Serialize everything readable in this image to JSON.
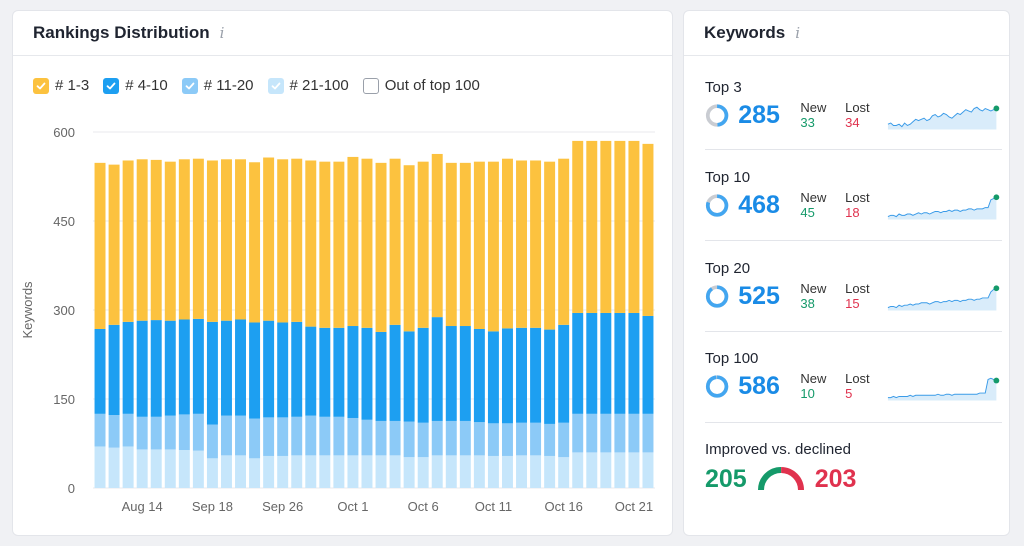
{
  "rankings": {
    "title": "Rankings Distribution",
    "info_glyph": "i",
    "legend": [
      {
        "label": "# 1-3",
        "color": "#fcc23f",
        "checked": true
      },
      {
        "label": "# 4-10",
        "color": "#1d9ff1",
        "checked": true
      },
      {
        "label": "# 11-20",
        "color": "#8ccaf7",
        "checked": true
      },
      {
        "label": "# 21-100",
        "color": "#c6e6fb",
        "checked": true
      },
      {
        "label": "Out of top 100",
        "color": "#ffffff",
        "checked": false
      }
    ]
  },
  "chart_data": {
    "type": "bar",
    "stacked": true,
    "ylabel": "Keywords",
    "xlabel": "",
    "ylim": [
      0,
      600
    ],
    "yticks": [
      0,
      150,
      300,
      450,
      600
    ],
    "grid": true,
    "x_tick_labels": [
      {
        "index": 3,
        "label": "Aug 14"
      },
      {
        "index": 8,
        "label": "Sep 18"
      },
      {
        "index": 13,
        "label": "Sep 26"
      },
      {
        "index": 18,
        "label": "Oct 1"
      },
      {
        "index": 23,
        "label": "Oct 6"
      },
      {
        "index": 28,
        "label": "Oct 11"
      },
      {
        "index": 33,
        "label": "Oct 16"
      },
      {
        "index": 38,
        "label": "Oct 21"
      }
    ],
    "series": [
      {
        "name": "# 21-100",
        "color": "#c6e6fb",
        "values": [
          70,
          68,
          70,
          65,
          65,
          65,
          64,
          63,
          50,
          55,
          55,
          50,
          54,
          54,
          55,
          55,
          55,
          55,
          55,
          55,
          55,
          55,
          52,
          52,
          55,
          55,
          55,
          55,
          54,
          54,
          55,
          55,
          54,
          52,
          60,
          60,
          60,
          60,
          60,
          60
        ]
      },
      {
        "name": "# 11-20",
        "color": "#8ccaf7",
        "values": [
          55,
          55,
          55,
          55,
          55,
          57,
          60,
          62,
          57,
          67,
          67,
          67,
          65,
          65,
          65,
          67,
          65,
          65,
          63,
          60,
          58,
          58,
          60,
          58,
          58,
          58,
          58,
          56,
          55,
          55,
          55,
          55,
          54,
          58,
          65,
          65,
          65,
          65,
          65,
          65
        ]
      },
      {
        "name": "# 4-10",
        "color": "#1d9ff1",
        "values": [
          143,
          152,
          155,
          162,
          163,
          160,
          160,
          160,
          173,
          160,
          162,
          162,
          163,
          160,
          160,
          150,
          150,
          150,
          155,
          155,
          150,
          162,
          152,
          160,
          175,
          160,
          160,
          157,
          155,
          160,
          160,
          160,
          159,
          165,
          170,
          170,
          170,
          170,
          170,
          165
        ]
      },
      {
        "name": "# 1-3",
        "color": "#fcc23f",
        "values": [
          280,
          270,
          272,
          272,
          270,
          268,
          270,
          270,
          272,
          272,
          270,
          270,
          275,
          275,
          275,
          280,
          280,
          280,
          285,
          285,
          285,
          280,
          280,
          280,
          275,
          275,
          275,
          282,
          286,
          286,
          282,
          282,
          283,
          280,
          290,
          290,
          290,
          290,
          290,
          290
        ]
      }
    ]
  },
  "keywords": {
    "title": "Keywords",
    "info_glyph": "i",
    "new_label": "New",
    "lost_label": "Lost",
    "blocks": [
      {
        "label": "Top 3",
        "value": "285",
        "new": "33",
        "lost": "34",
        "donut_fraction": 0.49,
        "spark": [
          5,
          6,
          4,
          4,
          5,
          3,
          6,
          4,
          5,
          7,
          9,
          8,
          9,
          10,
          8,
          9,
          12,
          13,
          11,
          12,
          14,
          13,
          11,
          10,
          12,
          14,
          13,
          15,
          17,
          16,
          15,
          18,
          19,
          17,
          16,
          18,
          17,
          16,
          17,
          18
        ]
      },
      {
        "label": "Top 10",
        "value": "468",
        "new": "45",
        "lost": "18",
        "donut_fraction": 0.8,
        "spark": [
          6,
          7,
          7,
          6,
          8,
          7,
          7,
          8,
          8,
          7,
          8,
          9,
          8,
          9,
          9,
          8,
          9,
          10,
          10,
          9,
          10,
          10,
          11,
          10,
          11,
          11,
          10,
          11,
          11,
          12,
          12,
          11,
          12,
          12,
          12,
          13,
          13,
          19,
          20,
          21
        ]
      },
      {
        "label": "Top 20",
        "value": "525",
        "new": "38",
        "lost": "15",
        "donut_fraction": 0.9,
        "spark": [
          5,
          6,
          6,
          5,
          7,
          6,
          7,
          7,
          8,
          7,
          8,
          8,
          9,
          9,
          9,
          8,
          9,
          10,
          10,
          9,
          10,
          10,
          11,
          10,
          11,
          11,
          10,
          11,
          11,
          12,
          12,
          11,
          12,
          12,
          13,
          13,
          13,
          18,
          20,
          21
        ]
      },
      {
        "label": "Top 100",
        "value": "586",
        "new": "10",
        "lost": "5",
        "donut_fraction": 0.98,
        "spark": [
          6,
          6,
          7,
          6,
          7,
          7,
          7,
          7,
          8,
          7,
          8,
          8,
          8,
          8,
          8,
          8,
          8,
          8,
          9,
          8,
          8,
          9,
          9,
          8,
          9,
          9,
          9,
          9,
          9,
          9,
          9,
          9,
          9,
          10,
          10,
          10,
          22,
          23,
          22,
          21
        ]
      }
    ],
    "improved": {
      "label": "Improved vs. declined",
      "improved_value": "205",
      "declined_value": "203",
      "improved_color": "#159a6a",
      "declined_color": "#e0324e"
    }
  }
}
